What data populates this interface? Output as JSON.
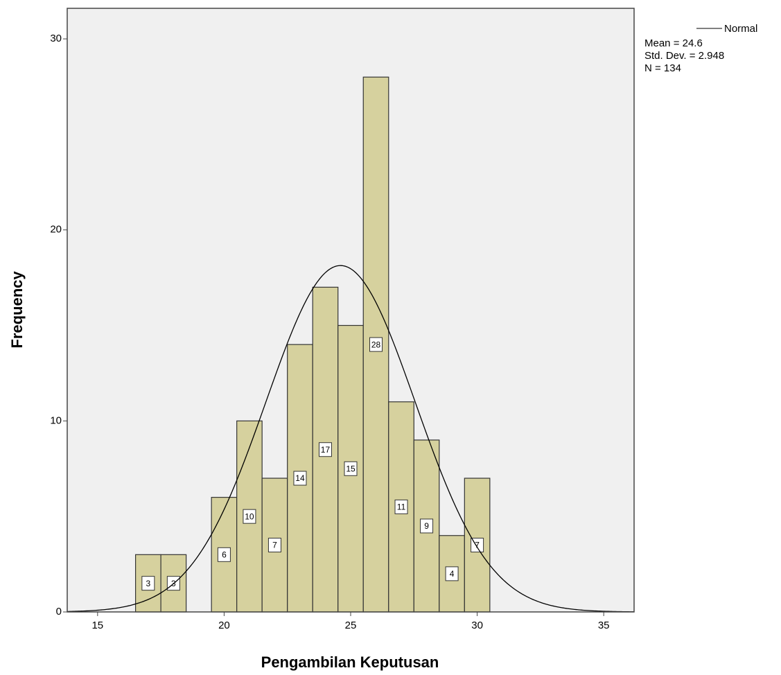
{
  "chart_data": {
    "type": "histogram",
    "x_label": "Pengambilan Keputusan",
    "y_label": "Frequency",
    "bins": [
      16.5,
      17.5,
      18.5,
      19.5,
      20.5,
      21.5,
      22.5,
      23.5,
      24.5,
      25.5,
      26.5,
      27.5,
      28.5,
      29.5,
      30.5
    ],
    "values": [
      3,
      3,
      0,
      6,
      10,
      7,
      14,
      17,
      15,
      28,
      11,
      9,
      4,
      7
    ],
    "color": "#d6d19e",
    "xlim": [
      13.8,
      36.2
    ],
    "xticks": [
      15,
      20,
      25,
      30,
      35
    ],
    "ylim": [
      0,
      31.6
    ],
    "yticks": [
      0,
      10,
      20,
      30
    ],
    "legend": "Normal",
    "stats": {
      "mean": {
        "value": 24.6,
        "label": "Mean = 24.6"
      },
      "std": {
        "value": 2.948,
        "label": "Std. Dev. = 2.948"
      },
      "n": {
        "value": 134,
        "label": "N = 134"
      }
    }
  }
}
